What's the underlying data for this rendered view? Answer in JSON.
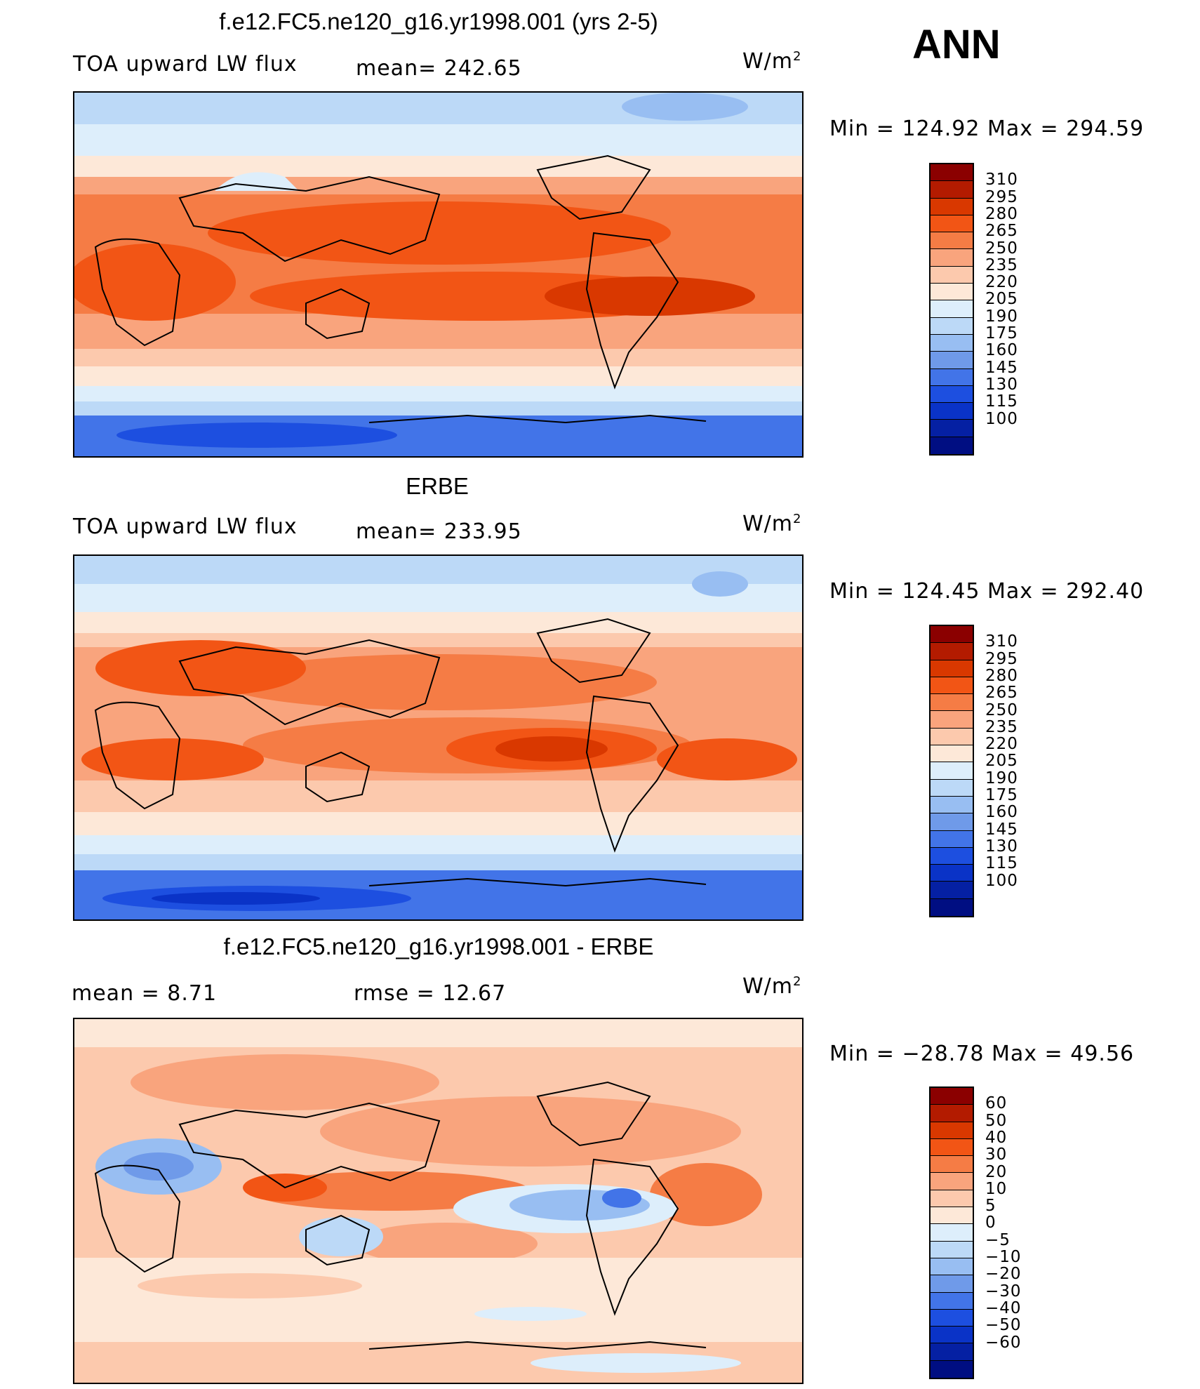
{
  "season": "ANN",
  "units_main": "W/m",
  "units_sup": "2",
  "panels": [
    {
      "title": "f.e12.FC5.ne120_g16.yr1998.001 (yrs 2-5)",
      "left_label": "TOA upward LW flux",
      "mid_label": "mean=  242.65",
      "minmax": "Min  =  124.92  Max  =  294.59"
    },
    {
      "title": "ERBE",
      "left_label": "TOA upward LW flux",
      "mid_label": "mean=  233.95",
      "minmax": "Min  =  124.45  Max  =  292.40"
    },
    {
      "title": "f.e12.FC5.ne120_g16.yr1998.001 - ERBE",
      "left_label": "mean  =      8.71",
      "mid_label": "rmse  =     12.67",
      "minmax": "Min  = −28.78  Max  =    49.56"
    }
  ],
  "colorbar_abs": {
    "colors": [
      "#8b0000",
      "#b31b00",
      "#d93800",
      "#f25515",
      "#f57c45",
      "#f9a47d",
      "#fcc9ad",
      "#fde8d8",
      "#ddeefb",
      "#bcd9f7",
      "#98bef2",
      "#6f9ae9",
      "#4274e8",
      "#1d4fe0",
      "#0a33c7",
      "#0520a3",
      "#000e82"
    ],
    "ticks": [
      "310",
      "295",
      "280",
      "265",
      "250",
      "235",
      "220",
      "205",
      "190",
      "175",
      "160",
      "145",
      "130",
      "115",
      "100"
    ]
  },
  "colorbar_diff": {
    "colors": [
      "#8b0000",
      "#b31b00",
      "#d93800",
      "#f25515",
      "#f57c45",
      "#f9a47d",
      "#fcc9ad",
      "#fde8d8",
      "#ddeefb",
      "#bcd9f7",
      "#98bef2",
      "#6f9ae9",
      "#4274e8",
      "#1d4fe0",
      "#0a33c7",
      "#0520a3",
      "#000e82"
    ],
    "ticks": [
      "60",
      "50",
      "40",
      "30",
      "20",
      "10",
      "5",
      "0",
      "−5",
      "−10",
      "−20",
      "−30",
      "−40",
      "−50",
      "−60"
    ]
  },
  "chart_data": [
    {
      "type": "heatmap",
      "title": "f.e12.FC5.ne120_g16.yr1998.001 (yrs 2-5)",
      "field": "TOA upward LW flux",
      "units": "W/m2",
      "mean": 242.65,
      "min": 124.92,
      "max": 294.59,
      "levels": [
        100,
        115,
        130,
        145,
        160,
        175,
        190,
        205,
        220,
        235,
        250,
        265,
        280,
        295,
        310
      ]
    },
    {
      "type": "heatmap",
      "title": "ERBE",
      "field": "TOA upward LW flux",
      "units": "W/m2",
      "mean": 233.95,
      "min": 124.45,
      "max": 292.4,
      "levels": [
        100,
        115,
        130,
        145,
        160,
        175,
        190,
        205,
        220,
        235,
        250,
        265,
        280,
        295,
        310
      ]
    },
    {
      "type": "heatmap",
      "title": "f.e12.FC5.ne120_g16.yr1998.001 - ERBE",
      "units": "W/m2",
      "mean": 8.71,
      "rmse": 12.67,
      "min": -28.78,
      "max": 49.56,
      "levels": [
        -60,
        -50,
        -40,
        -30,
        -20,
        -10,
        -5,
        0,
        5,
        10,
        20,
        30,
        40,
        50,
        60
      ]
    }
  ]
}
